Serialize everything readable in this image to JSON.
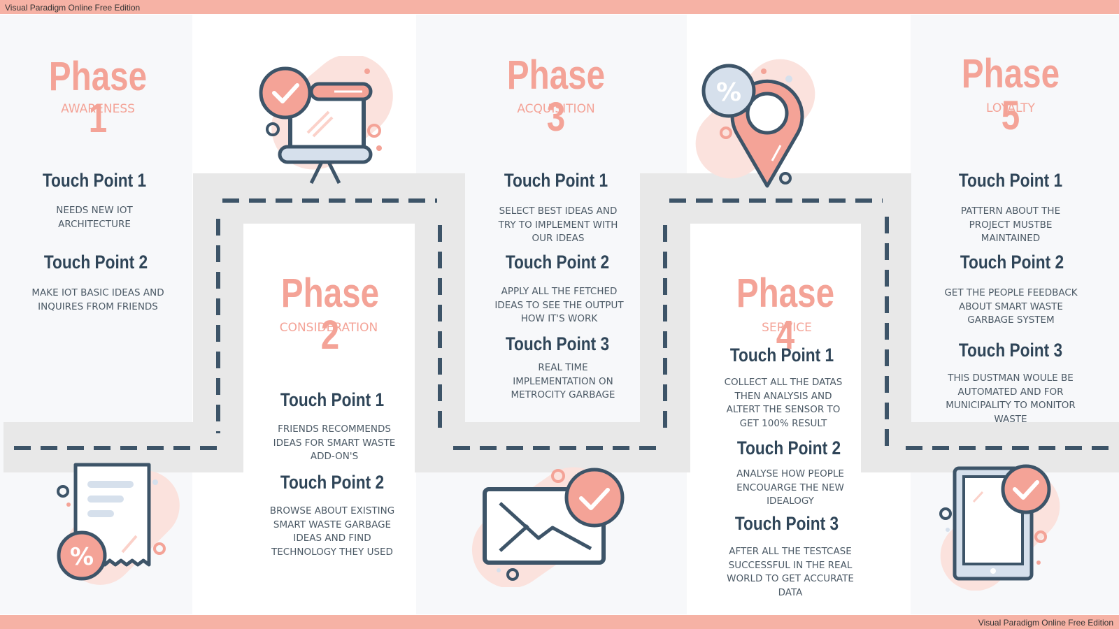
{
  "watermark": {
    "top": "Visual Paradigm Online Free Edition",
    "bottom": "Visual Paradigm Online Free Edition"
  },
  "phases": [
    {
      "title": "Phase 1",
      "stage": "AWARENESS",
      "touchpoints": [
        {
          "title": "Touch Point 1",
          "text": "NEEDS NEW IOT\nARCHITECTURE"
        },
        {
          "title": "Touch Point 2",
          "text": "MAKE IOT BASIC IDEAS AND\nINQUIRES FROM FRIENDS"
        }
      ]
    },
    {
      "title": "Phase 2",
      "stage": "CONSIDERATION",
      "touchpoints": [
        {
          "title": "Touch Point 1",
          "text": "FRIENDS RECOMMENDS\nIDEAS FOR SMART WASTE\nADD-ON'S"
        },
        {
          "title": "Touch Point 2",
          "text": "BROWSE ABOUT EXISTING\nSMART WASTE GARBAGE\nIDEAS AND FIND\nTECHNOLOGY THEY USED"
        }
      ]
    },
    {
      "title": "Phase 3",
      "stage": "ACQUISITION",
      "touchpoints": [
        {
          "title": "Touch Point 1",
          "text": "SELECT BEST IDEAS AND\nTRY TO IMPLEMENT WITH\nOUR IDEAS"
        },
        {
          "title": "Touch Point 2",
          "text": "APPLY ALL THE FETCHED\nIDEAS TO SEE THE  OUTPUT\nHOW IT'S WORK"
        },
        {
          "title": "Touch Point 3",
          "text": "REAL TIME\nIMPLEMENTATION ON\nMETROCITY GARBAGE"
        }
      ]
    },
    {
      "title": "Phase 4",
      "stage": "SERVICE",
      "touchpoints": [
        {
          "title": "Touch Point 1",
          "text": "COLLECT ALL THE DATAS\nTHEN ANALYSIS AND\nALTERT THE SENSOR TO\nGET 100% RESULT"
        },
        {
          "title": "Touch Point 2",
          "text": "ANALYSE HOW PEOPLE\nENCOUARGE THE NEW\nIDEALOGY"
        },
        {
          "title": "Touch Point 3",
          "text": "AFTER ALL THE TESTCASE\nSUCCESSFUL IN THE REAL\nWORLD TO GET ACCURATE\nDATA"
        }
      ]
    },
    {
      "title": "Phase 5",
      "stage": "LOYALTY",
      "touchpoints": [
        {
          "title": "Touch Point 1",
          "text": "PATTERN ABOUT THE\nPROJECT MUSTBE\nMAINTAINED"
        },
        {
          "title": "Touch Point 2",
          "text": "GET THE PEOPLE FEEDBACK\nABOUT SMART WASTE\nGARBAGE SYSTEM"
        },
        {
          "title": "Touch Point 3",
          "text": "THIS DUSTMAN WOULE BE\nAUTOMATED AND FOR\nMUNICIPALITY TO MONITOR\nWASTE"
        }
      ]
    }
  ],
  "icons": {
    "presentation": "presentation-board-check-icon",
    "location": "location-pin-percent-icon",
    "receipt": "receipt-percent-icon",
    "email": "envelope-check-icon",
    "tablet": "tablet-check-icon"
  },
  "colors": {
    "accent": "#f4a397",
    "dark": "#3d5468",
    "road": "#e8e8e8",
    "light_blue": "#d6e0ec"
  }
}
